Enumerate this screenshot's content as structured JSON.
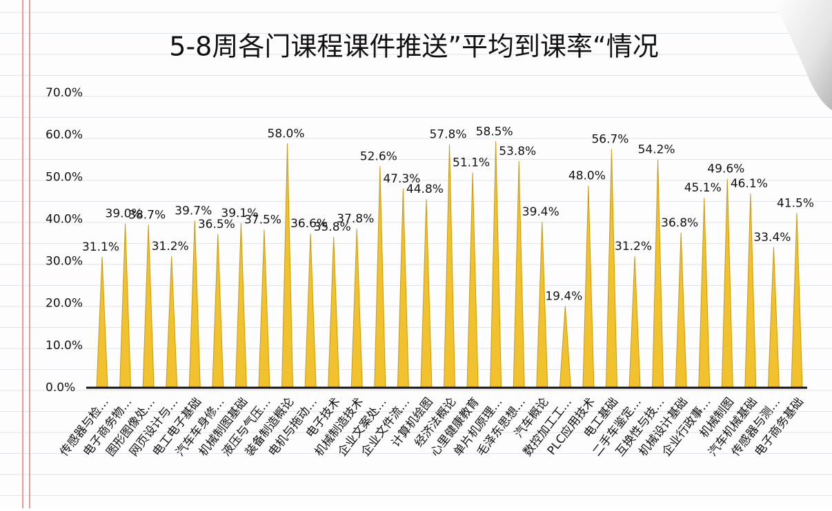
{
  "chart_data": {
    "type": "spike",
    "title": "5-8周各门课程课件推送”平均到课率“情况",
    "categories": [
      "传感器与检…",
      "电子商务物…",
      "图形图像处…",
      "网页设计与…",
      "电工电子基础",
      "汽车车身修…",
      "机械制图基础",
      "液压与气压…",
      "装备制造概论",
      "电机与拖动…",
      "电子技术",
      "机械制造技术",
      "企业文案处…",
      "企业文件流…",
      "计算机绘图",
      "经济法概论",
      "心里健康教育",
      "单片机原理…",
      "毛泽东思想…",
      "汽车概论",
      "数控加工工…",
      "PLC应用技术",
      "电工基础",
      "二手车鉴定…",
      "互换性与技…",
      "机械设计基础",
      "企业行政事…",
      "机械制图",
      "汽车机械基础",
      "传感器与测…",
      "电子商务基础"
    ],
    "values": [
      31.1,
      39.0,
      38.7,
      31.2,
      39.7,
      36.5,
      39.1,
      37.5,
      58.0,
      36.6,
      35.8,
      37.8,
      52.6,
      47.3,
      44.8,
      57.8,
      51.1,
      58.5,
      53.8,
      39.4,
      19.4,
      48.0,
      56.7,
      31.2,
      54.2,
      36.8,
      45.1,
      49.6,
      46.1,
      33.4,
      41.5
    ],
    "value_labels": [
      "31.1%",
      "39.0%",
      "38.7%",
      "31.2%",
      "39.7%",
      "36.5%",
      "39.1%",
      "37.5%",
      "58.0%",
      "36.6%",
      "35.8%",
      "37.8%",
      "52.6%",
      "47.3%",
      "44.8%",
      "57.8%",
      "51.1%",
      "58.5%",
      "53.8%",
      "39.4%",
      "19.4%",
      "48.0%",
      "56.7%",
      "31.2%",
      "54.2%",
      "36.8%",
      "45.1%",
      "49.6%",
      "46.1%",
      "33.4%",
      "41.5%"
    ],
    "color": "#f2c12e",
    "ylim": [
      0,
      70
    ],
    "yticks": [
      {
        "value": 0,
        "label": "0.0%"
      },
      {
        "value": 10,
        "label": "10.0%"
      },
      {
        "value": 20,
        "label": "20.0%"
      },
      {
        "value": 30,
        "label": "30.0%"
      },
      {
        "value": 40,
        "label": "40.0%"
      },
      {
        "value": 50,
        "label": "50.0%"
      },
      {
        "value": 60,
        "label": "60.0%"
      },
      {
        "value": 70,
        "label": "70.0%"
      }
    ],
    "grid": false
  }
}
